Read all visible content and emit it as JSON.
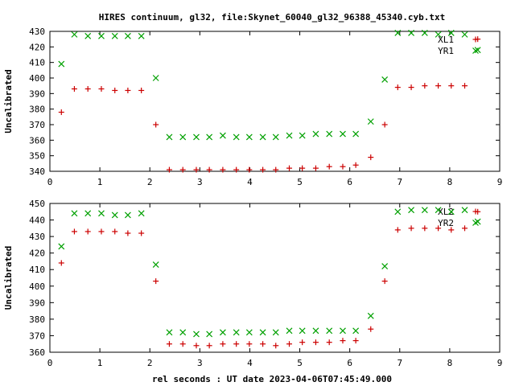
{
  "title": "HIRES continuum, gl32, file:Skynet_60040_gl32_96388_45340.cyb.txt",
  "xlabel": "rel seconds : UT date 2023-04-06T07:45:49.000",
  "chart_data": [
    {
      "type": "scatter",
      "ylabel": "Uncalibrated",
      "xlim": [
        0,
        9
      ],
      "ylim": [
        340,
        430
      ],
      "xticks": [
        0,
        1,
        2,
        3,
        4,
        5,
        6,
        7,
        8,
        9
      ],
      "yticks": [
        340,
        350,
        360,
        370,
        380,
        390,
        400,
        410,
        420,
        430
      ],
      "legend": "top-right",
      "series": [
        {
          "name": "XL1",
          "marker": "plus",
          "color": "#cc0000",
          "x": [
            0.23,
            0.49,
            0.76,
            1.03,
            1.3,
            1.56,
            1.83,
            2.12,
            2.39,
            2.66,
            2.93,
            3.19,
            3.46,
            3.73,
            3.99,
            4.26,
            4.52,
            4.79,
            5.05,
            5.32,
            5.59,
            5.86,
            6.12,
            6.42,
            6.7,
            6.96,
            7.23,
            7.5,
            7.77,
            8.03,
            8.3,
            8.56
          ],
          "y": [
            378,
            393,
            393,
            393,
            392,
            392,
            392,
            370,
            341,
            341,
            341,
            341,
            341,
            341,
            341,
            341,
            341,
            342,
            342,
            342,
            343,
            343,
            344,
            349,
            370,
            394,
            394,
            395,
            395,
            395,
            395,
            425
          ]
        },
        {
          "name": "YR1",
          "marker": "cross",
          "color": "#00a000",
          "x": [
            0.23,
            0.49,
            0.76,
            1.03,
            1.3,
            1.56,
            1.83,
            2.12,
            2.39,
            2.66,
            2.93,
            3.19,
            3.46,
            3.73,
            3.99,
            4.26,
            4.52,
            4.79,
            5.05,
            5.32,
            5.59,
            5.86,
            6.12,
            6.42,
            6.7,
            6.96,
            7.23,
            7.5,
            7.77,
            8.03,
            8.3,
            8.56
          ],
          "y": [
            409,
            428,
            427,
            427,
            427,
            427,
            427,
            400,
            362,
            362,
            362,
            362,
            363,
            362,
            362,
            362,
            362,
            363,
            363,
            364,
            364,
            364,
            364,
            372,
            399,
            429,
            429,
            429,
            428,
            429,
            428,
            418
          ]
        }
      ]
    },
    {
      "type": "scatter",
      "ylabel": "Uncalibrated",
      "xlim": [
        0,
        9
      ],
      "ylim": [
        360,
        450
      ],
      "xticks": [
        0,
        1,
        2,
        3,
        4,
        5,
        6,
        7,
        8,
        9
      ],
      "yticks": [
        360,
        370,
        380,
        390,
        400,
        410,
        420,
        430,
        440,
        450
      ],
      "legend": "top-right",
      "series": [
        {
          "name": "XL2",
          "marker": "plus",
          "color": "#cc0000",
          "x": [
            0.23,
            0.49,
            0.76,
            1.03,
            1.3,
            1.56,
            1.83,
            2.12,
            2.39,
            2.66,
            2.93,
            3.19,
            3.46,
            3.73,
            3.99,
            4.26,
            4.52,
            4.79,
            5.05,
            5.32,
            5.59,
            5.86,
            6.12,
            6.42,
            6.7,
            6.96,
            7.23,
            7.5,
            7.77,
            8.03,
            8.3,
            8.56
          ],
          "y": [
            414,
            433,
            433,
            433,
            433,
            432,
            432,
            403,
            365,
            365,
            364,
            364,
            365,
            365,
            365,
            365,
            364,
            365,
            366,
            366,
            366,
            367,
            367,
            374,
            403,
            434,
            435,
            435,
            435,
            434,
            435,
            445
          ]
        },
        {
          "name": "YR2",
          "marker": "cross",
          "color": "#00a000",
          "x": [
            0.23,
            0.49,
            0.76,
            1.03,
            1.3,
            1.56,
            1.83,
            2.12,
            2.39,
            2.66,
            2.93,
            3.19,
            3.46,
            3.73,
            3.99,
            4.26,
            4.52,
            4.79,
            5.05,
            5.32,
            5.59,
            5.86,
            6.12,
            6.42,
            6.7,
            6.96,
            7.23,
            7.5,
            7.77,
            8.03,
            8.3,
            8.56
          ],
          "y": [
            424,
            444,
            444,
            444,
            443,
            443,
            444,
            413,
            372,
            372,
            371,
            371,
            372,
            372,
            372,
            372,
            372,
            373,
            373,
            373,
            373,
            373,
            373,
            382,
            412,
            445,
            446,
            446,
            446,
            445,
            446,
            439
          ]
        }
      ]
    }
  ]
}
